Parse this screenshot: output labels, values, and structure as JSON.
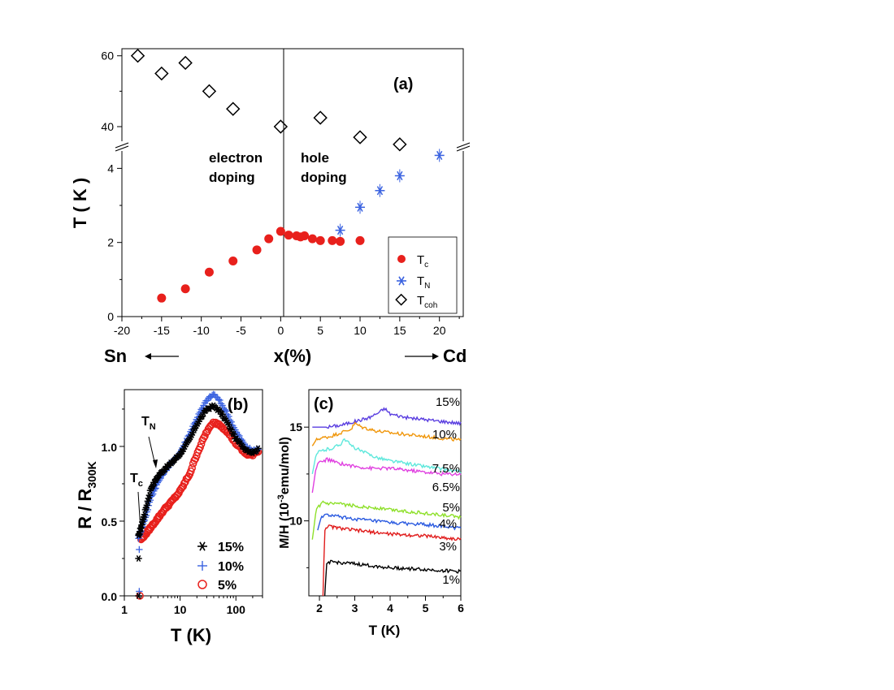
{
  "chart_data": [
    {
      "panel": "a",
      "type": "scatter",
      "panel_label": "(a)",
      "xlabel": "x(%)",
      "ylabel": "T ( K )",
      "xlim": [
        -20,
        23
      ],
      "ylim_lower": [
        0,
        4.6
      ],
      "ylim_upper": [
        34.5,
        62
      ],
      "axis_break": true,
      "xticks": [
        -20,
        -15,
        -10,
        -5,
        0,
        5,
        10,
        15,
        20
      ],
      "yticks_lower": [
        0,
        2,
        4
      ],
      "yticks_upper": [
        40,
        60
      ],
      "left_note": "Sn",
      "right_note": "Cd",
      "region_labels": [
        {
          "line1": "electron",
          "line2": "doping"
        },
        {
          "line1": "hole",
          "line2": "doping"
        }
      ],
      "legend": {
        "placement": "bottom-right",
        "entries": [
          {
            "main": "T",
            "sub": "c"
          },
          {
            "main": "T",
            "sub": "N"
          },
          {
            "main": "T",
            "sub": "coh"
          }
        ]
      },
      "series": [
        {
          "name": "Tc",
          "color": "#e8201c",
          "marker": "filled-circle",
          "x": [
            -15,
            -12,
            -9,
            -6,
            -3,
            -1.5,
            0,
            1,
            2,
            2.5,
            3,
            4,
            5,
            6.5,
            7.5,
            10
          ],
          "y": [
            0.5,
            0.75,
            1.2,
            1.5,
            1.8,
            2.1,
            2.3,
            2.2,
            2.18,
            2.15,
            2.18,
            2.1,
            2.05,
            2.05,
            2.03,
            2.05
          ]
        },
        {
          "name": "TN",
          "color": "#3a62e0",
          "marker": "asterisk",
          "x": [
            7.5,
            10,
            12.5,
            15,
            20
          ],
          "y": [
            2.33,
            2.95,
            3.4,
            3.8,
            4.35
          ]
        },
        {
          "name": "Tcoh",
          "color": "#000000",
          "marker": "open-diamond",
          "x": [
            -18,
            -15,
            -12,
            -9,
            -6,
            0,
            5,
            10,
            15
          ],
          "y": [
            60,
            55,
            58,
            50,
            45,
            40,
            42.5,
            37,
            35
          ]
        }
      ]
    },
    {
      "panel": "b",
      "type": "scatter",
      "panel_label": "(b)",
      "xlabel": "T (K)",
      "ylabel_main": "R / R",
      "ylabel_sub": "300K",
      "xscale": "log",
      "xlim": [
        1,
        300
      ],
      "ylim": [
        0,
        1.38
      ],
      "xticks": [
        1,
        10,
        100
      ],
      "yticks": [
        0.0,
        0.5,
        1.0
      ],
      "annotations": [
        {
          "main": "T",
          "sub": "N"
        },
        {
          "main": "T",
          "sub": "c"
        }
      ],
      "legend": {
        "placement": "bottom-right"
      },
      "series": [
        {
          "name": "15%",
          "color": "#000000",
          "marker": "asterisk",
          "x": [
            1.8,
            2,
            2.5,
            3,
            4,
            5,
            7,
            10,
            15,
            20,
            30,
            40,
            50,
            70,
            100,
            150,
            200,
            250
          ],
          "y": [
            0.4,
            0.46,
            0.6,
            0.72,
            0.8,
            0.84,
            0.89,
            0.95,
            1.05,
            1.15,
            1.25,
            1.27,
            1.24,
            1.16,
            1.05,
            0.98,
            0.96,
            0.98
          ],
          "dropout_x": [
            1.8,
            1.8
          ],
          "dropout_y": [
            0.25,
            0.0
          ]
        },
        {
          "name": "10%",
          "color": "#3a62e0",
          "marker": "plus",
          "x": [
            1.8,
            2,
            2.5,
            3,
            4,
            5,
            7,
            10,
            15,
            20,
            30,
            40,
            50,
            70,
            100,
            150,
            200,
            250
          ],
          "y": [
            0.39,
            0.44,
            0.55,
            0.66,
            0.76,
            0.82,
            0.89,
            0.96,
            1.09,
            1.19,
            1.31,
            1.35,
            1.31,
            1.22,
            1.1,
            1.0,
            0.97,
            0.98
          ],
          "dropout_x": [
            1.85,
            1.85
          ],
          "dropout_y": [
            0.31,
            0.03
          ]
        },
        {
          "name": "5%",
          "color": "#e8201c",
          "marker": "open-circle",
          "x": [
            2,
            2.5,
            3,
            4,
            5,
            7,
            10,
            15,
            20,
            30,
            40,
            50,
            70,
            100,
            150,
            200,
            250
          ],
          "y": [
            0.38,
            0.42,
            0.46,
            0.52,
            0.57,
            0.63,
            0.7,
            0.82,
            0.95,
            1.1,
            1.16,
            1.15,
            1.1,
            1.02,
            0.95,
            0.94,
            0.97
          ],
          "dropout_x": [
            1.9
          ],
          "dropout_y": [
            0.0
          ]
        }
      ]
    },
    {
      "panel": "c",
      "type": "line",
      "panel_label": "(c)",
      "xlabel": "T (K)",
      "ylabel_main": "M/H (10",
      "ylabel_sup": "-3",
      "ylabel_rest": "emu/mol)",
      "xlim": [
        1.7,
        6
      ],
      "ylim": [
        6,
        17
      ],
      "xticks": [
        2,
        3,
        4,
        5,
        6
      ],
      "yticks": [
        10,
        15
      ],
      "series": [
        {
          "name": "15%",
          "color": "#5a3ee0",
          "x": [
            1.8,
            2.2,
            2.6,
            3.0,
            3.4,
            3.7,
            3.85,
            4.0,
            4.5,
            5.0,
            5.5,
            6.0
          ],
          "y": [
            15.0,
            15.0,
            15.1,
            15.3,
            15.5,
            15.8,
            16.0,
            15.7,
            15.5,
            15.4,
            15.3,
            15.2
          ]
        },
        {
          "name": "10%",
          "color": "#f0960a",
          "x": [
            1.8,
            1.9,
            2.0,
            2.3,
            2.6,
            2.9,
            3.0,
            3.2,
            3.6,
            4.0,
            5.0,
            6.0
          ],
          "y": [
            14.0,
            14.3,
            14.4,
            14.5,
            14.7,
            14.9,
            15.2,
            15.0,
            14.8,
            14.7,
            14.5,
            14.3
          ]
        },
        {
          "name": "7.5%",
          "color": "#5ee8dc",
          "x": [
            1.8,
            1.9,
            2.0,
            2.2,
            2.4,
            2.6,
            2.7,
            2.9,
            3.2,
            3.6,
            4.0,
            5.0,
            6.0
          ],
          "y": [
            12.5,
            13.5,
            13.7,
            13.8,
            13.9,
            14.1,
            14.4,
            14.0,
            13.7,
            13.4,
            13.2,
            12.9,
            12.6
          ]
        },
        {
          "name": "6.5%",
          "color": "#e040e0",
          "x": [
            1.8,
            1.9,
            2.0,
            2.1,
            2.2,
            2.5,
            3.0,
            3.5,
            4.0,
            4.5,
            5.0,
            5.5,
            6.0
          ],
          "y": [
            11.5,
            12.8,
            13.2,
            13.1,
            13.3,
            13.1,
            12.9,
            12.8,
            12.8,
            12.7,
            12.6,
            12.5,
            12.5
          ]
        },
        {
          "name": "5%",
          "color": "#8ee02a",
          "x": [
            1.8,
            1.9,
            2.0,
            2.1,
            2.2,
            2.5,
            3.0,
            4.0,
            5.0,
            6.0
          ],
          "y": [
            9.0,
            10.5,
            10.8,
            11.0,
            10.9,
            10.9,
            10.8,
            10.6,
            10.4,
            10.2
          ]
        },
        {
          "name": "4%",
          "color": "#2a5ae0",
          "x": [
            1.95,
            2.05,
            2.15,
            2.3,
            2.6,
            3.0,
            4.0,
            5.0,
            6.0
          ],
          "y": [
            9.5,
            10.2,
            10.3,
            10.3,
            10.2,
            10.1,
            9.9,
            9.8,
            9.6
          ]
        },
        {
          "name": "3%",
          "color": "#e01c1c",
          "x": [
            2.1,
            2.15,
            2.2,
            2.3,
            2.6,
            3.0,
            4.0,
            5.0,
            6.0
          ],
          "y": [
            6.0,
            9.5,
            9.7,
            9.7,
            9.6,
            9.5,
            9.3,
            9.2,
            9.0
          ]
        },
        {
          "name": "1%",
          "color": "#000000",
          "x": [
            2.15,
            2.2,
            2.25,
            2.4,
            3.0,
            3.5,
            4.0,
            5.0,
            6.0
          ],
          "y": [
            6.0,
            7.6,
            7.8,
            7.8,
            7.7,
            7.6,
            7.5,
            7.4,
            7.3
          ]
        }
      ],
      "line_labels": [
        "15%",
        "10%",
        "7.5%",
        "6.5%",
        "5%",
        "4%",
        "3%",
        "1%"
      ]
    }
  ]
}
